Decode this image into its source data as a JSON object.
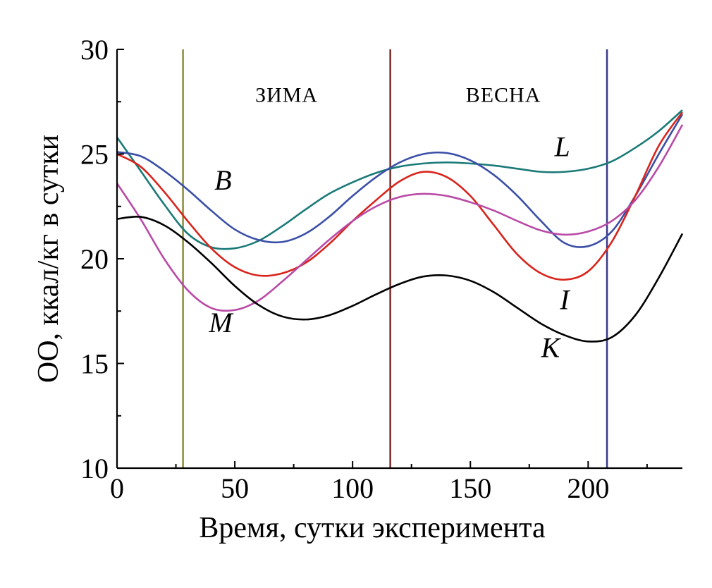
{
  "chart_data": {
    "type": "line",
    "xlabel": "Время, сутки эксперимента",
    "ylabel": "ОО, ккал/кг в сутки",
    "xlim": [
      0,
      240
    ],
    "ylim": [
      10,
      30
    ],
    "x_ticks": [
      0,
      50,
      100,
      150,
      200
    ],
    "x_tick_labels": [
      "0",
      "50",
      "100",
      "150",
      "200"
    ],
    "y_ticks": [
      10,
      15,
      20,
      25,
      30
    ],
    "y_tick_labels": [
      "10",
      "15",
      "20",
      "25",
      "30"
    ],
    "grid": false,
    "vertical_markers": [
      {
        "x": 28,
        "color": "#8a8a3a"
      },
      {
        "x": 116,
        "color": "#7a2a2a"
      },
      {
        "x": 208,
        "color": "#3a3a8a"
      }
    ],
    "annotations": [
      {
        "text": "ЗИМА",
        "x": 72,
        "y": 27.5
      },
      {
        "text": "ВЕСНА",
        "x": 164,
        "y": 27.5
      }
    ],
    "series": [
      {
        "name": "L",
        "color": "#1a7a78",
        "label_at": {
          "x": 189,
          "y": 24.9
        },
        "points": [
          [
            0,
            25.8
          ],
          [
            10,
            24.2
          ],
          [
            20,
            22.6
          ],
          [
            30,
            21.2
          ],
          [
            40,
            20.55
          ],
          [
            50,
            20.5
          ],
          [
            60,
            20.85
          ],
          [
            70,
            21.55
          ],
          [
            80,
            22.35
          ],
          [
            90,
            23.1
          ],
          [
            100,
            23.65
          ],
          [
            110,
            24.1
          ],
          [
            120,
            24.4
          ],
          [
            130,
            24.55
          ],
          [
            140,
            24.6
          ],
          [
            150,
            24.55
          ],
          [
            160,
            24.45
          ],
          [
            170,
            24.3
          ],
          [
            180,
            24.15
          ],
          [
            190,
            24.15
          ],
          [
            200,
            24.3
          ],
          [
            210,
            24.65
          ],
          [
            220,
            25.3
          ],
          [
            230,
            26.1
          ],
          [
            240,
            27.1
          ]
        ]
      },
      {
        "name": "B",
        "color": "#3a4fa6",
        "label_at": {
          "x": 45,
          "y": 23.3
        },
        "points": [
          [
            0,
            25.1
          ],
          [
            10,
            24.9
          ],
          [
            20,
            24.2
          ],
          [
            30,
            23.3
          ],
          [
            40,
            22.3
          ],
          [
            50,
            21.4
          ],
          [
            60,
            20.9
          ],
          [
            70,
            20.8
          ],
          [
            80,
            21.2
          ],
          [
            90,
            22.0
          ],
          [
            100,
            23.0
          ],
          [
            110,
            23.9
          ],
          [
            120,
            24.6
          ],
          [
            130,
            25.0
          ],
          [
            140,
            25.05
          ],
          [
            150,
            24.7
          ],
          [
            160,
            24.0
          ],
          [
            170,
            23.0
          ],
          [
            180,
            21.8
          ],
          [
            190,
            20.75
          ],
          [
            200,
            20.6
          ],
          [
            210,
            21.3
          ],
          [
            220,
            23.0
          ],
          [
            230,
            25.0
          ],
          [
            240,
            26.9
          ]
        ]
      },
      {
        "name": "I",
        "color": "#d8241c",
        "label_at": {
          "x": 190,
          "y": 17.6
        },
        "points": [
          [
            0,
            25.0
          ],
          [
            10,
            24.4
          ],
          [
            20,
            23.2
          ],
          [
            30,
            21.8
          ],
          [
            40,
            20.5
          ],
          [
            50,
            19.6
          ],
          [
            60,
            19.2
          ],
          [
            70,
            19.3
          ],
          [
            80,
            19.8
          ],
          [
            90,
            20.7
          ],
          [
            100,
            21.8
          ],
          [
            110,
            22.8
          ],
          [
            120,
            23.7
          ],
          [
            130,
            24.15
          ],
          [
            140,
            23.9
          ],
          [
            150,
            23.0
          ],
          [
            160,
            21.6
          ],
          [
            170,
            20.2
          ],
          [
            180,
            19.3
          ],
          [
            190,
            19.0
          ],
          [
            200,
            19.4
          ],
          [
            210,
            20.8
          ],
          [
            220,
            23.0
          ],
          [
            230,
            25.4
          ],
          [
            240,
            27.0
          ]
        ]
      },
      {
        "name": "M",
        "color": "#b94aa6",
        "label_at": {
          "x": 44,
          "y": 16.5
        },
        "points": [
          [
            0,
            23.6
          ],
          [
            10,
            21.9
          ],
          [
            20,
            20.0
          ],
          [
            30,
            18.5
          ],
          [
            40,
            17.65
          ],
          [
            50,
            17.55
          ],
          [
            60,
            18.0
          ],
          [
            70,
            18.9
          ],
          [
            80,
            19.9
          ],
          [
            90,
            20.9
          ],
          [
            100,
            21.8
          ],
          [
            110,
            22.5
          ],
          [
            120,
            22.95
          ],
          [
            130,
            23.1
          ],
          [
            140,
            23.0
          ],
          [
            150,
            22.7
          ],
          [
            160,
            22.3
          ],
          [
            170,
            21.8
          ],
          [
            180,
            21.35
          ],
          [
            190,
            21.15
          ],
          [
            200,
            21.3
          ],
          [
            210,
            21.8
          ],
          [
            220,
            22.8
          ],
          [
            230,
            24.4
          ],
          [
            240,
            26.4
          ]
        ]
      },
      {
        "name": "K",
        "color": "#000000",
        "label_at": {
          "x": 184,
          "y": 15.3
        },
        "points": [
          [
            0,
            21.9
          ],
          [
            10,
            22.0
          ],
          [
            20,
            21.6
          ],
          [
            30,
            20.8
          ],
          [
            40,
            19.8
          ],
          [
            50,
            18.7
          ],
          [
            60,
            17.8
          ],
          [
            70,
            17.25
          ],
          [
            80,
            17.1
          ],
          [
            90,
            17.3
          ],
          [
            100,
            17.75
          ],
          [
            110,
            18.3
          ],
          [
            120,
            18.8
          ],
          [
            130,
            19.15
          ],
          [
            140,
            19.2
          ],
          [
            150,
            18.95
          ],
          [
            160,
            18.4
          ],
          [
            170,
            17.65
          ],
          [
            180,
            16.9
          ],
          [
            190,
            16.35
          ],
          [
            200,
            16.05
          ],
          [
            210,
            16.25
          ],
          [
            220,
            17.3
          ],
          [
            230,
            19.1
          ],
          [
            240,
            21.2
          ]
        ]
      }
    ]
  }
}
